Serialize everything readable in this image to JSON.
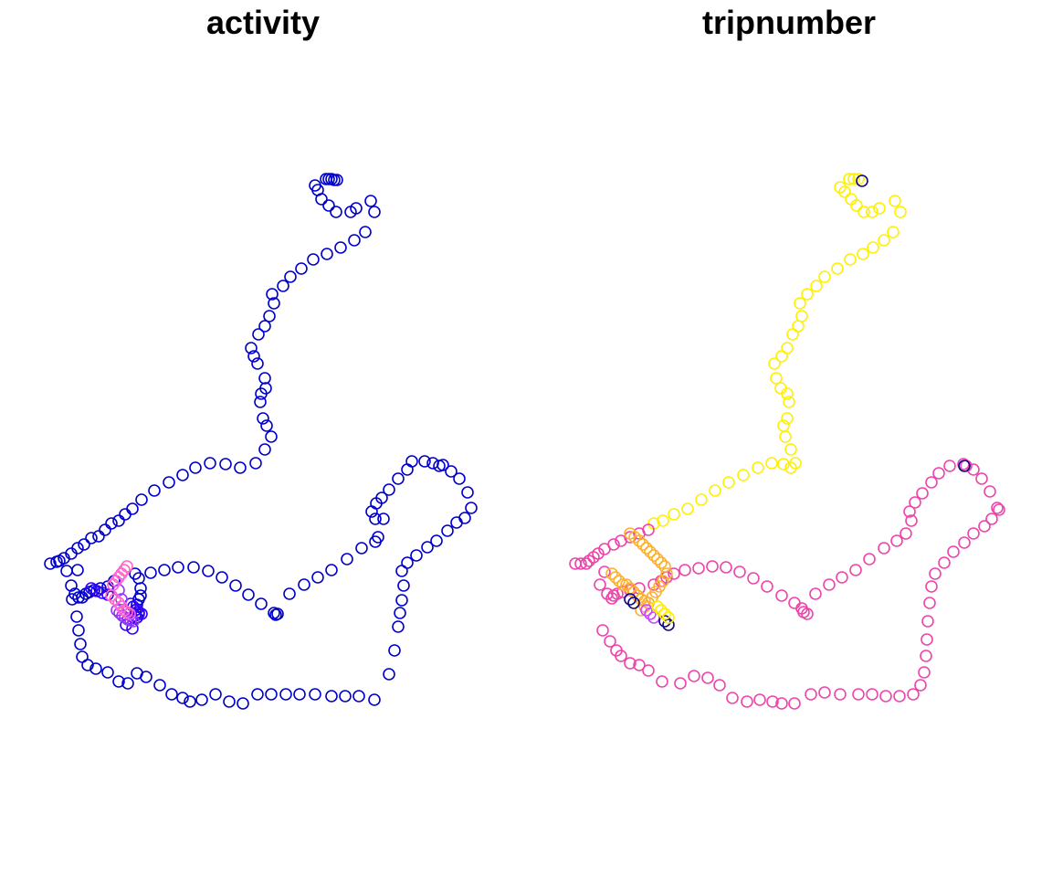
{
  "chart_data": [
    {
      "type": "scatter",
      "title": "activity",
      "marker": "open-circle",
      "grid": false,
      "series": [
        {
          "color": "#0000CC",
          "note_role": "route",
          "x": [
            357,
            360,
            363,
            366,
            369,
            348,
            345,
            352,
            360,
            368,
            384,
            390,
            406,
            410,
            400,
            388,
            373,
            358,
            343,
            330,
            318,
            310,
            298,
            300,
            295,
            290,
            283,
            275,
            278,
            282,
            290,
            291,
            286,
            285,
            288,
            292,
            297,
            290,
            280,
            263,
            247,
            230,
            214,
            200,
            185,
            169,
            155,
            145,
            137,
            130,
            122,
            115,
            108,
            100,
            92,
            85,
            78,
            70,
            62,
            55,
            85,
            78,
            82,
            86,
            90,
            94,
            98,
            103,
            110,
            118,
            125,
            148,
            152,
            154,
            154,
            152,
            150,
            148,
            150,
            165,
            180,
            195,
            212,
            228,
            243,
            258,
            272,
            286,
            300,
            302,
            304,
            317,
            333,
            348,
            363,
            380,
            396,
            411,
            414,
            420,
            411,
            407,
            412,
            418,
            426,
            436,
            446,
            451,
            465,
            474,
            481,
            485,
            494,
            503,
            512,
            516,
            509,
            500,
            490,
            478,
            468,
            456,
            446,
            440,
            442,
            440,
            438,
            436,
            432,
            426,
            410,
            393,
            378,
            363,
            345,
            328,
            313,
            297,
            282,
            266,
            251,
            236,
            221,
            208,
            200,
            188,
            175,
            160,
            150,
            140,
            130,
            118,
            105,
            96,
            90,
            88,
            86,
            84,
            79,
            73,
            65
          ],
          "y": [
            196,
            196,
            196,
            197,
            197,
            208,
            203,
            218,
            225,
            232,
            232,
            228,
            220,
            232,
            254,
            263,
            271,
            278,
            284,
            294,
            303,
            313,
            322,
            332,
            346,
            357,
            366,
            381,
            390,
            398,
            414,
            425,
            431,
            440,
            458,
            466,
            478,
            492,
            507,
            512,
            508,
            507,
            512,
            520,
            528,
            537,
            547,
            557,
            563,
            570,
            573,
            580,
            587,
            589,
            596,
            600,
            606,
            611,
            615,
            617,
            624,
            641,
            650,
            654,
            654,
            650,
            648,
            646,
            644,
            642,
            636,
            628,
            633,
            644,
            652,
            656,
            662,
            668,
            676,
            627,
            624,
            621,
            621,
            625,
            632,
            641,
            651,
            661,
            671,
            673,
            672,
            650,
            640,
            632,
            624,
            612,
            600,
            593,
            588,
            568,
            568,
            560,
            551,
            545,
            536,
            524,
            514,
            505,
            505,
            507,
            510,
            509,
            516,
            524,
            539,
            556,
            567,
            572,
            581,
            592,
            599,
            608,
            616,
            625,
            641,
            657,
            671,
            686,
            712,
            738,
            766,
            762,
            762,
            762,
            760,
            760,
            760,
            760,
            760,
            770,
            768,
            760,
            766,
            768,
            764,
            760,
            750,
            741,
            737,
            748,
            746,
            736,
            732,
            728,
            719,
            705,
            690,
            675,
            656,
            625,
            614
          ],
          "note_values": "approximate plotted coordinates read from image"
        },
        {
          "color": "#3300FF",
          "note_role": "cluster",
          "x": [
            143,
            146,
            150,
            152,
            155,
            148,
            140,
            138,
            145,
            152,
            100,
            106,
            112,
            118
          ],
          "y": [
            661,
            664,
            667,
            670,
            672,
            674,
            678,
            684,
            688,
            672,
            644,
            647,
            649,
            651
          ]
        },
        {
          "color": "#9933FF",
          "note_role": "cluster",
          "x": [
            128,
            131,
            134,
            137,
            140,
            143,
            146,
            133,
            130
          ],
          "y": [
            668,
            671,
            674,
            676,
            678,
            679,
            680,
            656,
            646
          ]
        },
        {
          "color": "#FF66CC",
          "note_role": "cluster",
          "x": [
            124,
            127,
            130,
            133,
            136,
            139,
            122,
            126,
            130,
            133,
            136,
            139,
            142
          ],
          "y": [
            640,
            636,
            632,
            628,
            624,
            620,
            652,
            656,
            660,
            664,
            668,
            670,
            672
          ]
        }
      ]
    },
    {
      "type": "scatter",
      "title": "tripnumber",
      "marker": "open-circle",
      "grid": false,
      "series": [
        {
          "color": "#FFF000",
          "note_role": "route-upper",
          "x": [
            930,
            935,
            940,
            925,
            920,
            932,
            938,
            946,
            955,
            963,
            980,
            986,
            978,
            968,
            956,
            945,
            931,
            917,
            903,
            894,
            884,
            876,
            878,
            874,
            868,
            862,
            856,
            848,
            850,
            855,
            862,
            864,
            862,
            858,
            860,
            866,
            871,
            866,
            858,
            845,
            830,
            814,
            798,
            783,
            768,
            753,
            738,
            726,
            716
          ],
          "y": [
            196,
            196,
            196,
            210,
            205,
            218,
            225,
            232,
            232,
            228,
            220,
            232,
            254,
            263,
            271,
            278,
            284,
            294,
            303,
            313,
            322,
            332,
            346,
            357,
            366,
            381,
            390,
            398,
            414,
            425,
            431,
            440,
            458,
            466,
            478,
            492,
            507,
            512,
            508,
            507,
            512,
            520,
            528,
            537,
            547,
            557,
            563,
            570,
            573
          ]
        },
        {
          "color": "#EE44AA",
          "note_role": "route-lower",
          "x": [
            710,
            700,
            690,
            680,
            672,
            662,
            655,
            650,
            645,
            642,
            636,
            630,
            662,
            657,
            665,
            670,
            672,
            676,
            682,
            690,
            700,
            716,
            724,
            730,
            738,
            750,
            765,
            780,
            795,
            810,
            825,
            840,
            856,
            870,
            878,
            880,
            884,
            893,
            908,
            922,
            937,
            952,
            968,
            982,
            992,
            998,
            996,
            1002,
            1010,
            1020,
            1028,
            1040,
            1055,
            1058,
            1066,
            1075,
            1084,
            1092,
            1094,
            1086,
            1078,
            1066,
            1056,
            1044,
            1034,
            1024,
            1020,
            1018,
            1016,
            1015,
            1014,
            1012,
            1008,
            1000,
            985,
            970,
            955,
            940,
            920,
            903,
            888,
            870,
            856,
            846,
            832,
            818,
            802,
            788,
            775,
            760,
            745,
            725,
            710,
            700,
            690,
            680,
            675,
            668,
            660
          ],
          "y": [
            580,
            584,
            588,
            592,
            596,
            601,
            606,
            610,
            614,
            617,
            617,
            617,
            626,
            640,
            650,
            655,
            652,
            650,
            648,
            646,
            644,
            640,
            636,
            632,
            628,
            624,
            622,
            620,
            621,
            626,
            633,
            642,
            652,
            660,
            666,
            670,
            672,
            650,
            640,
            632,
            624,
            612,
            600,
            592,
            584,
            570,
            560,
            550,
            540,
            528,
            518,
            510,
            508,
            510,
            514,
            524,
            538,
            556,
            558,
            568,
            576,
            584,
            594,
            604,
            616,
            628,
            642,
            660,
            680,
            700,
            718,
            736,
            750,
            760,
            762,
            762,
            760,
            760,
            760,
            758,
            760,
            770,
            770,
            768,
            766,
            768,
            764,
            750,
            742,
            740,
            748,
            746,
            734,
            728,
            726,
            718,
            712,
            702,
            690
          ]
        },
        {
          "color": "#FDB131",
          "note_role": "cluster",
          "x": [
            690,
            695,
            700,
            704,
            708,
            712,
            716,
            720,
            724,
            728,
            730,
            726,
            722,
            718,
            714,
            710,
            706,
            702,
            686,
            690,
            694,
            698,
            702,
            706,
            710,
            670,
            674,
            678,
            682
          ],
          "y": [
            584,
            588,
            592,
            596,
            600,
            604,
            608,
            612,
            616,
            620,
            628,
            636,
            642,
            648,
            654,
            660,
            664,
            668,
            640,
            644,
            648,
            652,
            656,
            658,
            660,
            628,
            632,
            636,
            640
          ]
        },
        {
          "color": "#CC44FF",
          "note_role": "cluster",
          "x": [
            708,
            712,
            716
          ],
          "y": [
            668,
            672,
            676
          ]
        },
        {
          "color": "#0D0887",
          "note_role": "cluster",
          "x": [
            690,
            694,
            728,
            732,
            1056,
            944
          ],
          "y": [
            656,
            660,
            680,
            684,
            510,
            198
          ]
        },
        {
          "color": "#FFEE00",
          "note_role": "cluster",
          "x": [
            720,
            724,
            728,
            732
          ],
          "y": [
            664,
            668,
            672,
            676
          ]
        }
      ]
    }
  ]
}
